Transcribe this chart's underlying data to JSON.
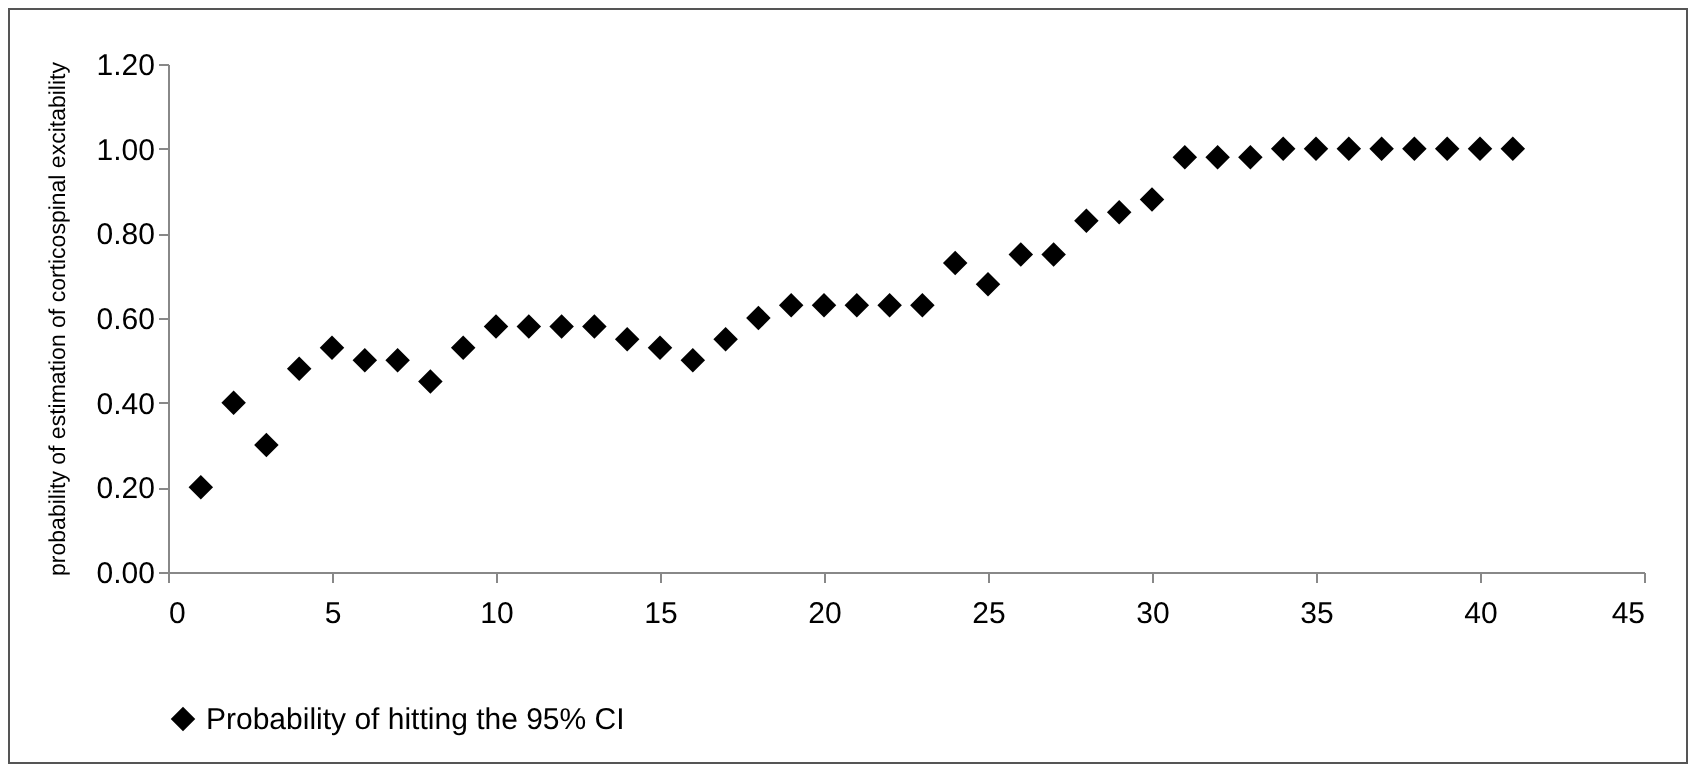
{
  "chart_data": {
    "type": "scatter",
    "ylabel": "probability of estimation of corticospinal excitability",
    "x": [
      1,
      2,
      3,
      4,
      5,
      6,
      7,
      8,
      9,
      10,
      11,
      12,
      13,
      14,
      15,
      16,
      17,
      18,
      19,
      20,
      21,
      22,
      23,
      24,
      25,
      26,
      27,
      28,
      29,
      30,
      31,
      32,
      33,
      34,
      35,
      36,
      37,
      38,
      39,
      40,
      41
    ],
    "series": [
      {
        "name": "Probability of hitting the 95% CI",
        "color": "#000000",
        "values": [
          0.2,
          0.4,
          0.3,
          0.48,
          0.53,
          0.5,
          0.5,
          0.45,
          0.53,
          0.58,
          0.58,
          0.58,
          0.58,
          0.55,
          0.53,
          0.5,
          0.55,
          0.6,
          0.63,
          0.63,
          0.63,
          0.63,
          0.63,
          0.73,
          0.68,
          0.75,
          0.75,
          0.83,
          0.85,
          0.88,
          0.98,
          0.98,
          0.98,
          1.0,
          1.0,
          1.0,
          1.0,
          1.0,
          1.0,
          1.0,
          1.0
        ]
      }
    ],
    "xlim": [
      0,
      45
    ],
    "xticks": [
      0,
      5,
      10,
      15,
      20,
      25,
      30,
      35,
      40,
      45
    ],
    "ylim": [
      0,
      1.2
    ],
    "yticks": [
      {
        "value": 0,
        "label": "0.00"
      },
      {
        "value": 0.2,
        "label": "0.20"
      },
      {
        "value": 0.4,
        "label": "0.40"
      },
      {
        "value": 0.6,
        "label": "0.60"
      },
      {
        "value": 0.8,
        "label": "0.80"
      },
      {
        "value": 1.0,
        "label": "1.00"
      },
      {
        "value": 1.2,
        "label": "1.20"
      }
    ],
    "grid": false,
    "legend": "bottom",
    "marker": "diamond"
  }
}
